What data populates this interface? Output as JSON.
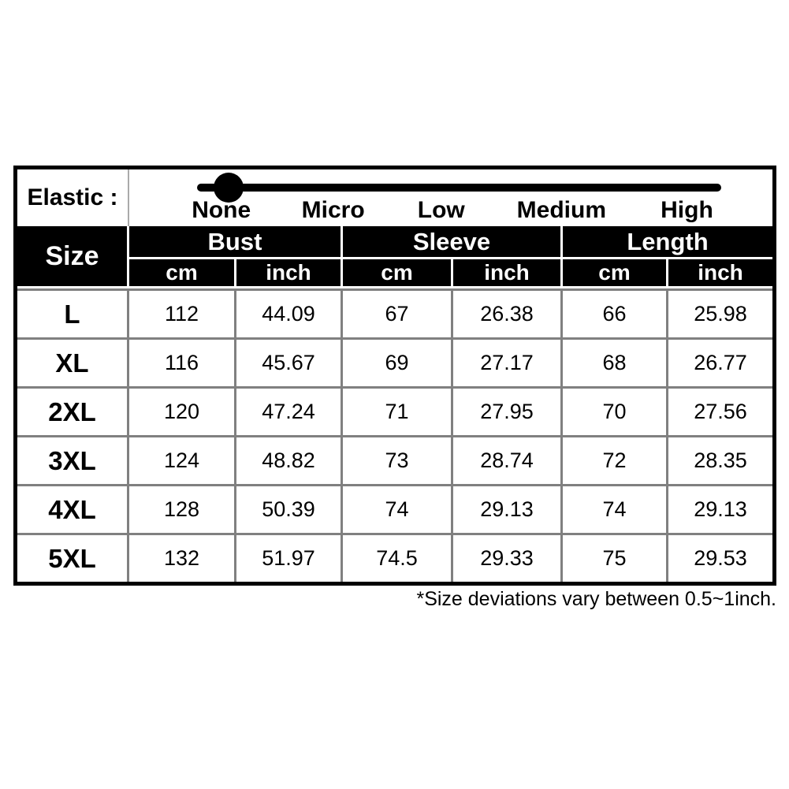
{
  "elastic": {
    "label": "Elastic :",
    "levels": [
      "None",
      "Micro",
      "Low",
      "Medium",
      "High"
    ],
    "selected_level": "None"
  },
  "table": {
    "size_header": "Size",
    "group_headers": [
      "Bust",
      "Sleeve",
      "Length"
    ],
    "unit_headers": [
      "cm",
      "inch",
      "cm",
      "inch",
      "cm",
      "inch"
    ],
    "rows": [
      {
        "size": "L",
        "values": [
          "112",
          "44.09",
          "67",
          "26.38",
          "66",
          "25.98"
        ]
      },
      {
        "size": "XL",
        "values": [
          "116",
          "45.67",
          "69",
          "27.17",
          "68",
          "26.77"
        ]
      },
      {
        "size": "2XL",
        "values": [
          "120",
          "47.24",
          "71",
          "27.95",
          "70",
          "27.56"
        ]
      },
      {
        "size": "3XL",
        "values": [
          "124",
          "48.82",
          "73",
          "28.74",
          "72",
          "28.35"
        ]
      },
      {
        "size": "4XL",
        "values": [
          "128",
          "50.39",
          "74",
          "29.13",
          "74",
          "29.13"
        ]
      },
      {
        "size": "5XL",
        "values": [
          "132",
          "51.97",
          "74.5",
          "29.33",
          "75",
          "29.53"
        ]
      }
    ]
  },
  "footnote": "*Size deviations vary between 0.5~1inch.",
  "colors": {
    "header_bg": "#000000",
    "header_text": "#ffffff",
    "body_text": "#000000",
    "grid_gray": "#808080",
    "background": "#ffffff"
  },
  "chart_data": {
    "type": "table",
    "title": "Garment size chart",
    "columns": [
      "Size",
      "Bust cm",
      "Bust inch",
      "Sleeve cm",
      "Sleeve inch",
      "Length cm",
      "Length inch"
    ],
    "rows": [
      [
        "L",
        112,
        44.09,
        67,
        26.38,
        66,
        25.98
      ],
      [
        "XL",
        116,
        45.67,
        69,
        27.17,
        68,
        26.77
      ],
      [
        "2XL",
        120,
        47.24,
        71,
        27.95,
        70,
        27.56
      ],
      [
        "3XL",
        124,
        48.82,
        73,
        28.74,
        72,
        28.35
      ],
      [
        "4XL",
        128,
        50.39,
        74,
        29.13,
        74,
        29.13
      ],
      [
        "5XL",
        132,
        51.97,
        74.5,
        29.33,
        75,
        29.53
      ]
    ],
    "annotations": [
      "Elastic scale: None, Micro, Low, Medium, High — slider knob positioned at None",
      "*Size deviations vary between 0.5~1inch."
    ]
  }
}
